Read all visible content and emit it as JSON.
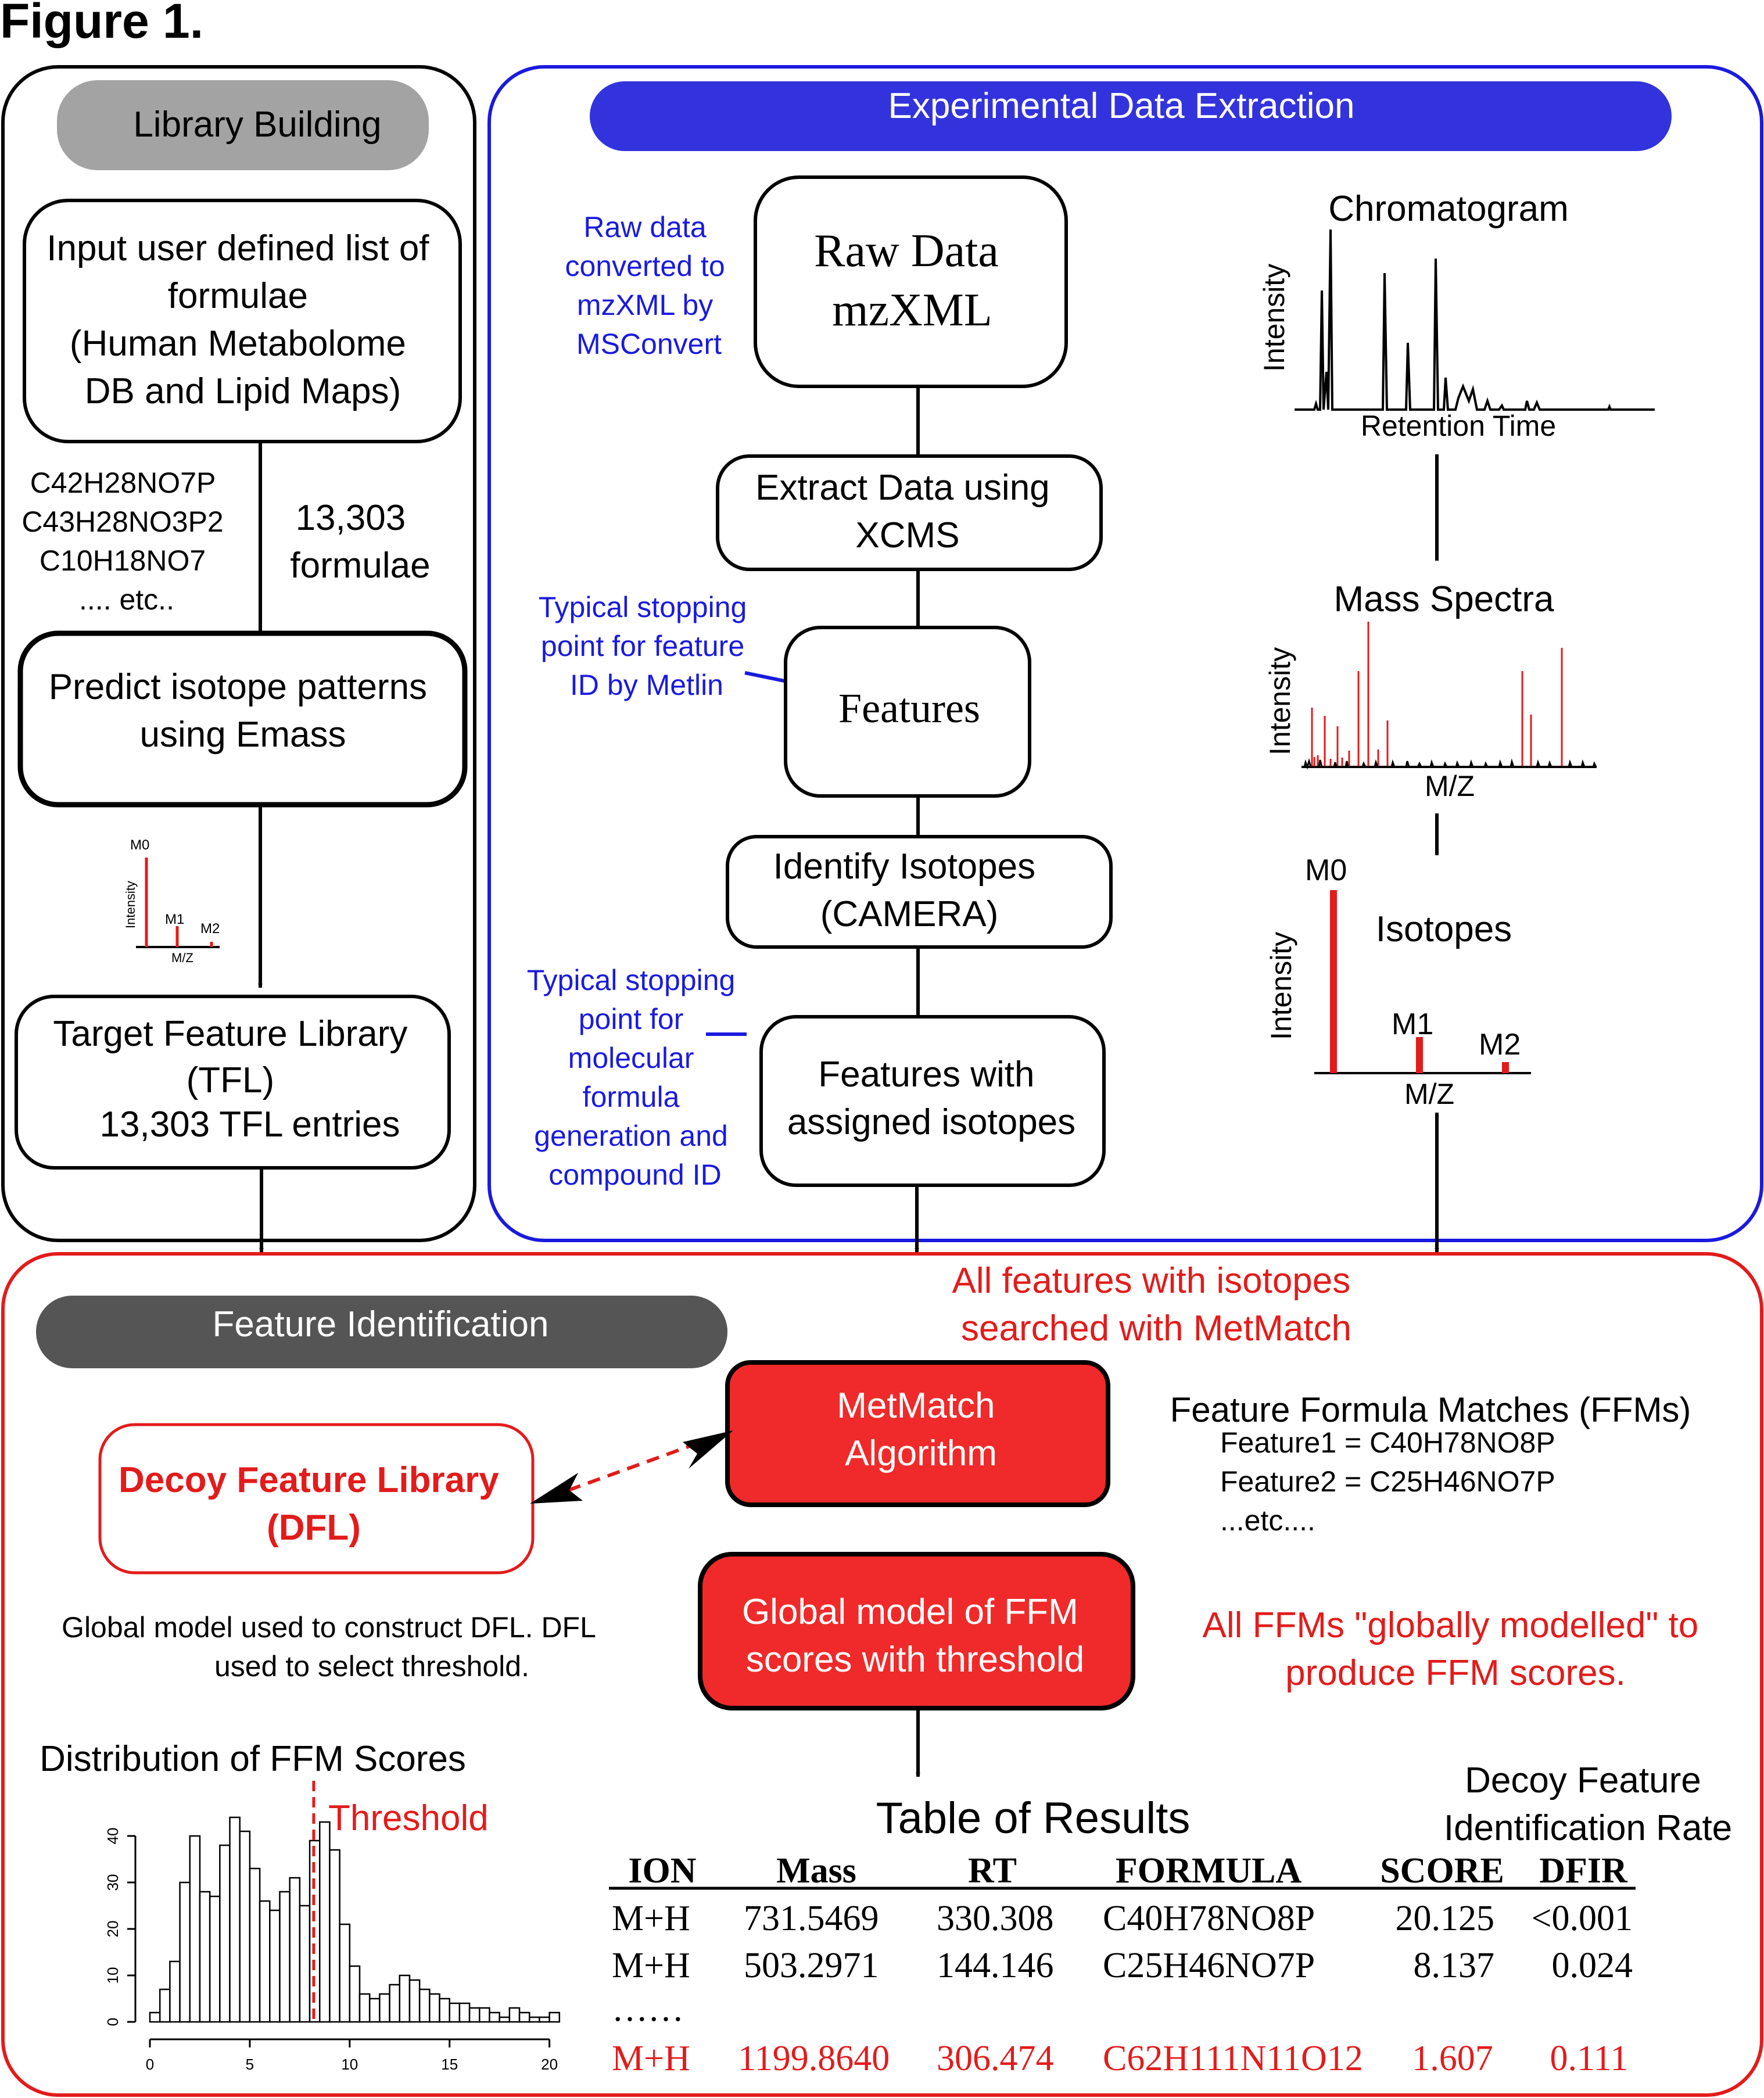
{
  "figure_title": "Figure 1.",
  "library": {
    "header": "Library Building",
    "input_box": [
      "Input user defined list of",
      "formulae",
      "(Human Metabolome",
      "DB and Lipid Maps)"
    ],
    "formula_examples": [
      "C42H28NO7P",
      "C43H28NO3P2",
      "C10H18NO7",
      ".... etc.."
    ],
    "count_label": [
      "13,303",
      "formulae"
    ],
    "predict_box": [
      "Predict isotope patterns",
      "using Emass"
    ],
    "mini_plot": {
      "ylabel": "Intensity",
      "xlabel": "M/Z",
      "peaks": [
        "M0",
        "M1",
        "M2"
      ]
    },
    "tfl_box": [
      "Target Feature Library",
      "(TFL)",
      "13,303 TFL entries"
    ]
  },
  "extraction": {
    "header": "Experimental Data Extraction",
    "raw_note": [
      "Raw data",
      "converted to",
      "mzXML by",
      "MSConvert"
    ],
    "raw_box": [
      "Raw Data",
      "mzXML"
    ],
    "xcms_box": [
      "Extract Data using",
      "XCMS"
    ],
    "metlin_note": [
      "Typical stopping",
      "point for feature",
      "ID by Metlin"
    ],
    "features_box": "Features",
    "camera_box": [
      "Identify Isotopes",
      "(CAMERA)"
    ],
    "formula_note": [
      "Typical stopping",
      "point for",
      "molecular",
      "formula",
      "generation and",
      "compound ID"
    ],
    "assigned_box": [
      "Features with",
      "assigned isotopes"
    ],
    "chromatogram": {
      "title": "Chromatogram",
      "ylabel": "Intensity",
      "xlabel": "Retention Time"
    },
    "mass_spectra": {
      "title": "Mass Spectra",
      "ylabel": "Intensity",
      "xlabel": "M/Z"
    },
    "isotopes": {
      "title": "Isotopes",
      "ylabel": "Intensity",
      "xlabel": "M/Z",
      "peaks": [
        "M0",
        "M1",
        "M2"
      ]
    }
  },
  "identification": {
    "header": "Feature Identification",
    "search_note": [
      "All features with isotopes",
      "searched with MetMatch"
    ],
    "metmatch_box": [
      "MetMatch",
      "Algorithm"
    ],
    "ffm_title": "Feature Formula Matches  (FFMs)",
    "ffm_lines": [
      "Feature1  = C40H78NO8P",
      "Feature2  = C25H46NO7P",
      "...etc...."
    ],
    "decoy_box": [
      "Decoy Feature Library",
      "(DFL)"
    ],
    "global_note": [
      "Global model used to construct DFL.  DFL",
      "used to select threshold."
    ],
    "global_box": [
      "Global model of FFM",
      "scores with threshold"
    ],
    "modelled_note": [
      "All FFMs \"globally modelled\" to",
      "produce FFM scores."
    ],
    "dfir_label": [
      "Decoy Feature",
      "Identification Rate"
    ],
    "table_title": "Table of Results",
    "table": {
      "headers": [
        "ION",
        "Mass",
        "RT",
        "FORMULA",
        "SCORE",
        "DFIR"
      ],
      "rows": [
        [
          "M+H",
          "731.5469",
          "330.308",
          "C40H78NO8P",
          "20.125",
          "<0.001"
        ],
        [
          "M+H",
          "503.2971",
          "144.146",
          "C25H46NO7P",
          "8.137",
          "0.024"
        ]
      ],
      "ellipsis": "……",
      "highlight_row": [
        "M+H",
        "1199.8640",
        "306.474",
        "C62H111N11O12",
        "1.607",
        "0.111"
      ]
    }
  },
  "colors": {
    "red": "#e31b1b",
    "blue": "#1a1adf",
    "blue_header": "#3333dd",
    "gray_light": "#a3a3a3",
    "gray_dark": "#555555",
    "red_fill": "#f02a2a"
  },
  "chart_data": {
    "type": "bar",
    "title": "Distribution of FFM Scores",
    "threshold_label": "Threshold",
    "threshold_value": 8.2,
    "xlabel": "",
    "ylabel": "",
    "bin_width": 0.5,
    "bin_start": 0,
    "xlim": [
      0,
      21
    ],
    "ylim": [
      0,
      45
    ],
    "x_ticks": [
      0,
      5,
      10,
      15,
      20
    ],
    "y_ticks": [
      0,
      10,
      20,
      30,
      40
    ],
    "values": [
      2,
      7,
      13,
      30,
      40,
      28,
      27,
      38,
      44,
      41,
      33,
      26,
      24,
      28,
      31,
      25,
      39,
      43,
      37,
      21,
      12,
      6,
      5,
      6,
      8,
      10,
      9,
      7,
      6,
      5,
      4,
      4,
      3,
      3,
      2,
      1,
      3,
      2,
      1,
      1,
      2
    ]
  }
}
